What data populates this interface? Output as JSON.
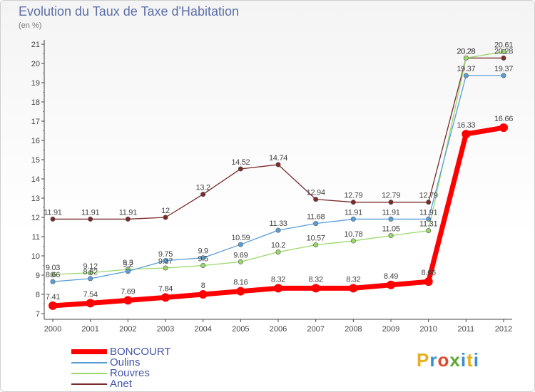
{
  "header": {
    "title": "Evolution du Taux de Taxe d'Habitation",
    "subtitle": "(en %)"
  },
  "logo": {
    "text": "Proxiti",
    "letter_colors": [
      "#e8b020",
      "#3a8fd0",
      "#e04a2a",
      "#5aaa30",
      "#3a8fd0",
      "#e8b020",
      "#3a8fd0"
    ]
  },
  "chart_data": {
    "type": "line",
    "title": "Evolution du Taux de Taxe d'Habitation",
    "ylabel": "(en %)",
    "xlabel": "",
    "x": [
      "2000",
      "2001",
      "2002",
      "2003",
      "2004",
      "2005",
      "2006",
      "2007",
      "2008",
      "2009",
      "2010",
      "2011",
      "2012"
    ],
    "ylim": [
      7,
      21
    ],
    "yticks": [
      7,
      8,
      9,
      10,
      11,
      12,
      13,
      14,
      15,
      16,
      17,
      18,
      19,
      20,
      21
    ],
    "grid": false,
    "legend_position": "bottom-left",
    "series": [
      {
        "name": "BONCOURT",
        "color": "#ff0000",
        "values": [
          7.41,
          7.54,
          7.69,
          7.84,
          8,
          8.16,
          8.32,
          8.32,
          8.32,
          8.49,
          8.66,
          16.33,
          16.66
        ],
        "labels": [
          "7.41",
          "7.54",
          "7.69",
          "7.84",
          "8",
          "8.16",
          "8.32",
          "8.32",
          "8.32",
          "8.49",
          "8.66",
          "16.33",
          "16.66"
        ]
      },
      {
        "name": "Oulins",
        "color": "#5a9ed8",
        "values": [
          8.66,
          8.82,
          9.2,
          9.75,
          9.9,
          10.59,
          11.33,
          11.68,
          11.91,
          11.91,
          11.91,
          19.37,
          19.37
        ],
        "labels": [
          "8.66",
          "8.82",
          "9.2",
          "9.75",
          "9.9",
          "10.59",
          "11.33",
          "11.68",
          "11.91",
          "11.91",
          "11.91",
          "19.37",
          "19.37"
        ]
      },
      {
        "name": "Rouvres",
        "color": "#99d96a",
        "values": [
          9.03,
          9.12,
          9.3,
          9.37,
          9.5,
          9.69,
          10.2,
          10.57,
          10.78,
          11.05,
          11.31,
          20.28,
          20.61
        ],
        "labels": [
          "9.03",
          "9.12",
          "9.3",
          "9.37",
          "9.5",
          "9.69",
          "10.2",
          "10.57",
          "10.78",
          "11.05",
          "11.31",
          "20.28",
          "20.61"
        ]
      },
      {
        "name": "Anet",
        "color": "#7a2a2a",
        "values": [
          11.91,
          11.91,
          11.91,
          12,
          13.2,
          14.52,
          14.74,
          12.94,
          12.79,
          12.79,
          12.79,
          20.28,
          20.28
        ],
        "labels": [
          "11.91",
          "11.91",
          "11.91",
          "12",
          "13.2",
          "14.52",
          "14.74",
          "12.94",
          "12.79",
          "12.79",
          "12.79",
          "20.28",
          "20.28"
        ]
      }
    ]
  }
}
